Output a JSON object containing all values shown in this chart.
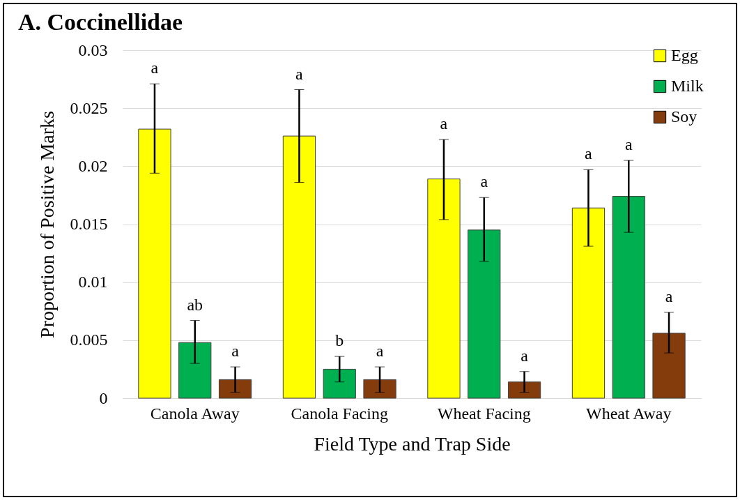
{
  "chart_data": {
    "type": "bar",
    "title": "A. Coccinellidae",
    "xlabel": "Field Type and Trap Side",
    "ylabel": "Proportion of Positive Marks",
    "categories": [
      "Canola Away",
      "Canola Facing",
      "Wheat Facing",
      "Wheat Away"
    ],
    "series": [
      {
        "name": "Egg",
        "color": "#ffff00",
        "values": [
          0.0232,
          0.0226,
          0.0189,
          0.0164
        ],
        "errors": [
          [
            0.0194,
            0.0271
          ],
          [
            0.0186,
            0.0266
          ],
          [
            0.0154,
            0.0223
          ],
          [
            0.0131,
            0.0197
          ]
        ],
        "value_labels": [
          "a",
          "a",
          "a",
          "a"
        ]
      },
      {
        "name": "Milk",
        "color": "#00b050",
        "values": [
          0.0048,
          0.0025,
          0.0145,
          0.0174
        ],
        "errors": [
          [
            0.003,
            0.0067
          ],
          [
            0.0014,
            0.0036
          ],
          [
            0.0118,
            0.0173
          ],
          [
            0.0143,
            0.0205
          ]
        ],
        "value_labels": [
          "ab",
          "b",
          "a",
          "a"
        ]
      },
      {
        "name": "Soy",
        "color": "#843c0c",
        "values": [
          0.0016,
          0.0016,
          0.0014,
          0.0056
        ],
        "errors": [
          [
            0.0005,
            0.0027
          ],
          [
            0.0005,
            0.0027
          ],
          [
            0.0005,
            0.0023
          ],
          [
            0.0039,
            0.0074
          ]
        ],
        "value_labels": [
          "a",
          "a",
          "a",
          "a"
        ]
      }
    ],
    "ylim": [
      0,
      0.03
    ],
    "yticks": [
      0,
      0.005,
      0.01,
      0.015,
      0.02,
      0.025,
      0.03
    ],
    "grid": "y",
    "legend": "top right"
  }
}
